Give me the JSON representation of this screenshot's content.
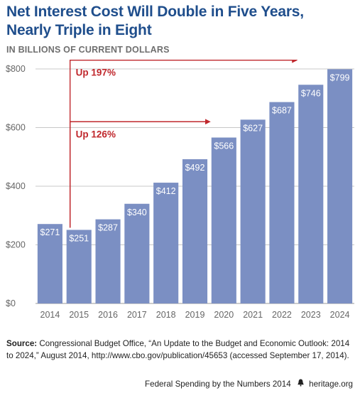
{
  "header": {
    "title_line1": "Net Interest Cost Will Double in Five Years,",
    "title_line2": "Nearly Triple in Eight",
    "subtitle": "IN BILLIONS OF CURRENT DOLLARS"
  },
  "chart_data": {
    "type": "bar",
    "categories": [
      "2014",
      "2015",
      "2016",
      "2017",
      "2018",
      "2019",
      "2020",
      "2021",
      "2022",
      "2023",
      "2024"
    ],
    "values": [
      271,
      251,
      287,
      340,
      412,
      492,
      566,
      627,
      687,
      746,
      799
    ],
    "value_labels": [
      "$271",
      "$251",
      "$287",
      "$340",
      "$412",
      "$492",
      "$566",
      "$627",
      "$687",
      "$746",
      "$799"
    ],
    "ylim": [
      0,
      800
    ],
    "yticks": [
      0,
      200,
      400,
      600,
      800
    ],
    "ytick_labels": [
      "$0",
      "$200",
      "$400",
      "$600",
      "$800"
    ],
    "grid": true,
    "bar_color": "#7b8fc3",
    "annotations": [
      {
        "label": "Up 126%",
        "from": "2015",
        "to": "2020"
      },
      {
        "label": "Up 197%",
        "from": "2015",
        "to": "2023"
      }
    ],
    "annotation_color": "#c0282d"
  },
  "source": {
    "label": "Source:",
    "text": "Congressional Budget Office, “An Update to the Budget and Economic Outlook: 2014 to 2024,” August 2014, http://www.cbo.gov/publication/45653 (accessed September 17, 2014)."
  },
  "footer": {
    "publication": "Federal Spending by the Numbers 2014",
    "site": "heritage.org",
    "bell_icon": "liberty-bell-icon"
  }
}
